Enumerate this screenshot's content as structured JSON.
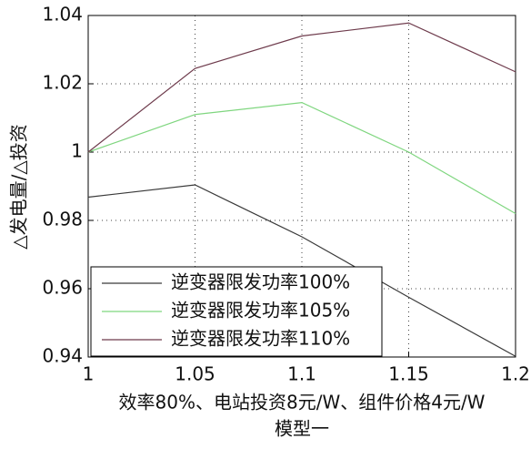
{
  "chart_data": {
    "type": "line",
    "xlabel_lines": [
      "效率80%、电站投资8元/W、组件价格4元/W",
      "模型一"
    ],
    "ylabel": "△发电量/△投资",
    "x": [
      1,
      1.05,
      1.1,
      1.15,
      1.2
    ],
    "series": [
      {
        "name": "逆变器限发功率100%",
        "color": "#3a3a3a",
        "values": [
          0.9868,
          0.9904,
          0.9752,
          0.9575,
          0.9402
        ]
      },
      {
        "name": "逆变器限发功率105%",
        "color": "#7fd67f",
        "values": [
          1.0,
          1.011,
          1.0145,
          1.0,
          0.982
        ]
      },
      {
        "name": "逆变器限发功率110%",
        "color": "#6e3b4c",
        "values": [
          1.0,
          1.0245,
          1.034,
          1.0378,
          1.0235
        ]
      }
    ],
    "xlim": [
      1,
      1.2
    ],
    "xticks": [
      1,
      1.05,
      1.1,
      1.15,
      1.2
    ],
    "ylim": [
      0.94,
      1.04
    ],
    "yticks": [
      0.94,
      0.96,
      0.98,
      1,
      1.02,
      1.04
    ],
    "grid": true,
    "legend": "lower left"
  }
}
